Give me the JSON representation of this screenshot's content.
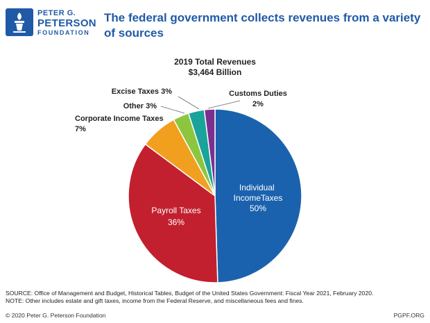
{
  "logo": {
    "line1": "PETER G.",
    "line2": "PETERSON",
    "line3": "FOUNDATION"
  },
  "title": "The federal government collects revenues from a variety of sources",
  "chart_data": {
    "type": "pie",
    "title": "2019 Total Revenues",
    "subtitle": "$3,464 Billion",
    "slices": [
      {
        "label": "Individual IncomeTaxes",
        "value": 50,
        "pct_text": "50%",
        "color": "#1b62ae"
      },
      {
        "label": "Payroll Taxes",
        "value": 36,
        "pct_text": "36%",
        "color": "#c2202f"
      },
      {
        "label": "Corporate Income Taxes",
        "value": 7,
        "pct_text": "7%",
        "color": "#f0a01e"
      },
      {
        "label": "Other",
        "value": 3,
        "pct_text": "3%",
        "color": "#8cc63f"
      },
      {
        "label": "Excise Taxes",
        "value": 3,
        "pct_text": "3%",
        "color": "#1aa39a"
      },
      {
        "label": "Customs Duties",
        "value": 2,
        "pct_text": "2%",
        "color": "#7b2f8f"
      }
    ]
  },
  "footer": {
    "source": "SOURCE: Office of Management and Budget, Historical Tables, Budget of the United States Government: Fiscal Year 2021, February 2020.",
    "note": "NOTE: Other includes estate and gift taxes, income from the Federal Reserve, and miscellaneous fees and fines.",
    "copyright": "© 2020 Peter G. Peterson Foundation",
    "url": "PGPF.ORG"
  }
}
